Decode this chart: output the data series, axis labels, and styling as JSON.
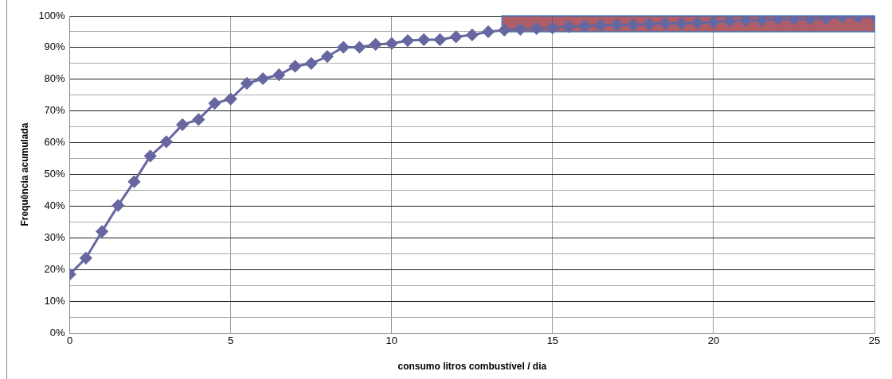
{
  "chart_data": {
    "type": "line",
    "xlabel": "consumo litros combustível / dia",
    "ylabel": "Frequência acumulada",
    "x": [
      0,
      0.5,
      1,
      1.5,
      2,
      2.5,
      3,
      3.5,
      4,
      4.5,
      5,
      5.5,
      6,
      6.5,
      7,
      7.5,
      8,
      8.5,
      9,
      9.5,
      10,
      10.5,
      11,
      11.5,
      12,
      12.5,
      13,
      13.5,
      14,
      14.5,
      15,
      15.5,
      16,
      16.5,
      17,
      17.5,
      18,
      18.5,
      19,
      19.5,
      20,
      20.5,
      21,
      21.5,
      22,
      22.5,
      23,
      23.5,
      24,
      24.5,
      25
    ],
    "series": [
      {
        "color": "#6667a0",
        "values": [
          18.5,
          23.6,
          32,
          40.2,
          47.7,
          55.8,
          60.3,
          65.7,
          67.3,
          72.4,
          73.8,
          78.7,
          80.2,
          81.4,
          84.1,
          85,
          87.2,
          90.1,
          90.1,
          91,
          91.3,
          92.2,
          92.5,
          92.5,
          93.4,
          94,
          95,
          95.5,
          95.8,
          96,
          96.2,
          96.6,
          96.8,
          97,
          97.2,
          97.2,
          97.4,
          97.6,
          97.6,
          97.8,
          98,
          98.4,
          98.6,
          98.6,
          99,
          99,
          99,
          99.2,
          99.6,
          99.6,
          99.8
        ]
      }
    ],
    "xlim": [
      0,
      25
    ],
    "xticks": [
      0,
      5,
      10,
      15,
      20,
      25
    ],
    "ylim": [
      0,
      100
    ],
    "yticks": [
      {
        "value": 0,
        "label": "0%"
      },
      {
        "value": 5,
        "label": null
      },
      {
        "value": 10,
        "label": "10%"
      },
      {
        "value": 15,
        "label": null
      },
      {
        "value": 20,
        "label": "20%"
      },
      {
        "value": 25,
        "label": null
      },
      {
        "value": 30,
        "label": "30%"
      },
      {
        "value": 35,
        "label": null
      },
      {
        "value": 40,
        "label": "40%"
      },
      {
        "value": 45,
        "label": null
      },
      {
        "value": 50,
        "label": "50%"
      },
      {
        "value": 55,
        "label": null
      },
      {
        "value": 60,
        "label": "60%"
      },
      {
        "value": 65,
        "label": null
      },
      {
        "value": 70,
        "label": "70%"
      },
      {
        "value": 75,
        "label": null
      },
      {
        "value": 80,
        "label": "80%"
      },
      {
        "value": 85,
        "label": null
      },
      {
        "value": 90,
        "label": "90%"
      },
      {
        "value": 95,
        "label": null
      },
      {
        "value": 100,
        "label": "100%"
      }
    ],
    "bands": [
      {
        "axis": "y",
        "from": 95,
        "to": 100,
        "color": "#8b1a2a"
      }
    ],
    "grid": true,
    "legend": false,
    "marker": "diamond",
    "line_style": "solid"
  }
}
